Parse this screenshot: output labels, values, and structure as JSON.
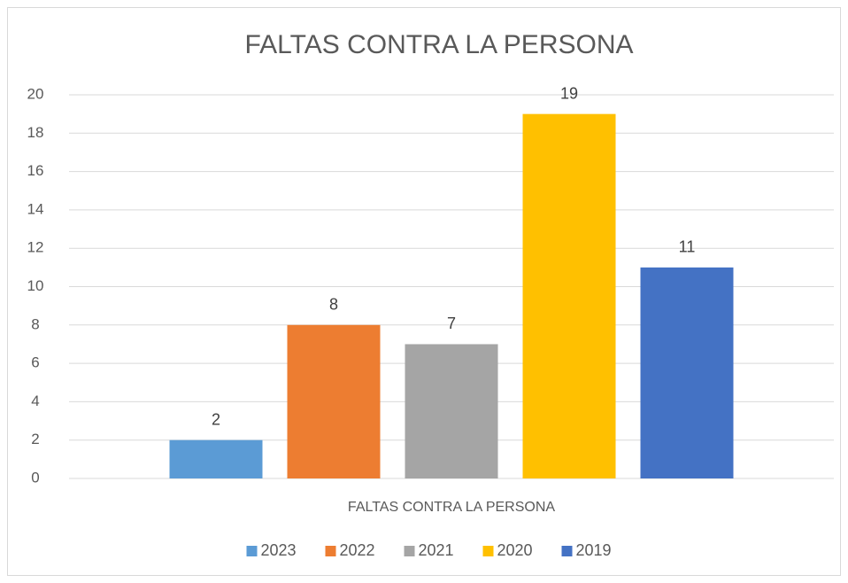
{
  "chart_data": {
    "type": "bar",
    "title": "FALTAS CONTRA LA PERSONA",
    "categories": [
      "FALTAS CONTRA LA PERSONA"
    ],
    "series": [
      {
        "name": "2023",
        "color": "#5b9bd5",
        "values": [
          2
        ]
      },
      {
        "name": "2022",
        "color": "#ed7d31",
        "values": [
          8
        ]
      },
      {
        "name": "2021",
        "color": "#a5a5a5",
        "values": [
          7
        ]
      },
      {
        "name": "2020",
        "color": "#ffc000",
        "values": [
          19
        ]
      },
      {
        "name": "2019",
        "color": "#4472c4",
        "values": [
          11
        ]
      }
    ],
    "ylim": [
      0,
      20
    ],
    "yticks": [
      0,
      2,
      4,
      6,
      8,
      10,
      12,
      14,
      16,
      18,
      20
    ],
    "grid": true,
    "legend": "bottom"
  }
}
